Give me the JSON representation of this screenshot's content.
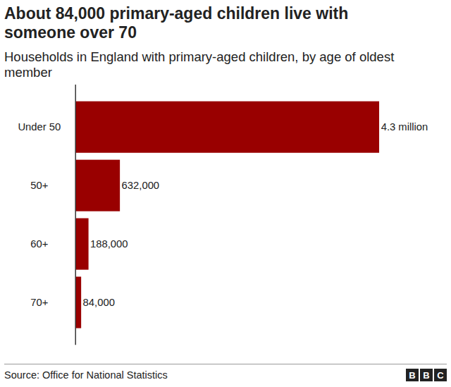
{
  "chart_data": {
    "type": "bar",
    "orientation": "horizontal",
    "title": "About 84,000 primary-aged children live with someone over 70",
    "subtitle": "Households in England with primary-aged children, by age of oldest member",
    "categories": [
      "Under 50",
      "50+",
      "60+",
      "70+"
    ],
    "values": [
      4300000,
      632000,
      188000,
      84000
    ],
    "value_labels": [
      "4.3 million",
      "632,000",
      "188,000",
      "84,000"
    ],
    "data_labels": true,
    "color": "#990000",
    "xlim": [
      0,
      4300000
    ],
    "xticks": [],
    "tick_labels": "y",
    "grid": false,
    "source": "Source: Office for National Statistics",
    "logo": "BBC"
  }
}
